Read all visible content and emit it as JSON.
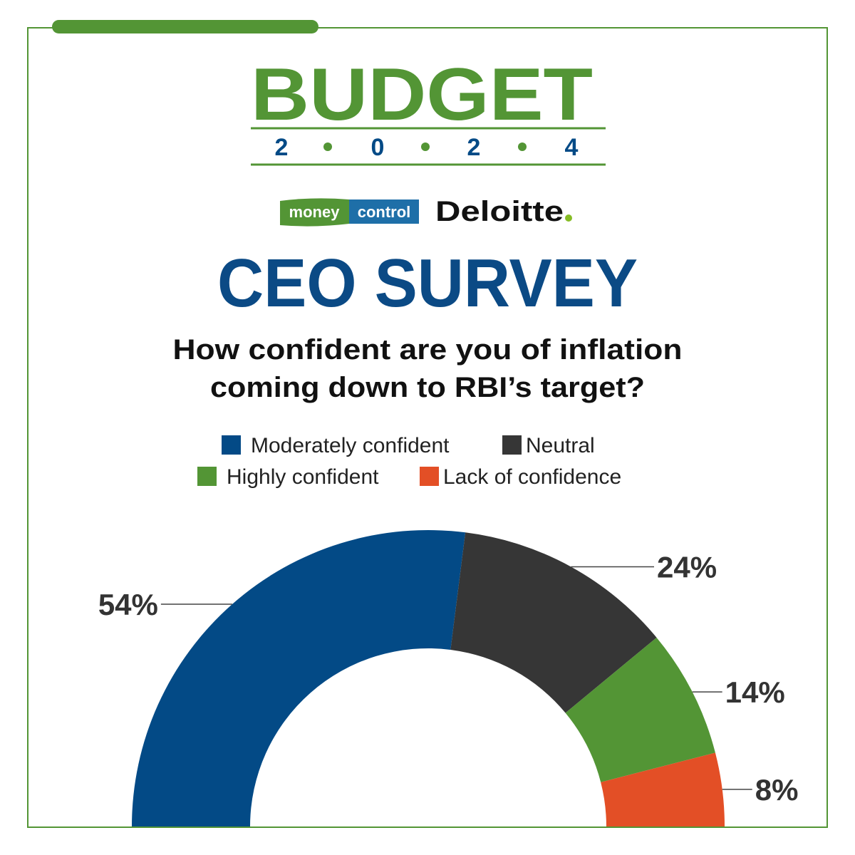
{
  "header": {
    "logo_title": "BUDGET",
    "logo_year_digits": [
      "2",
      "0",
      "2",
      "4"
    ],
    "brand_money": "money",
    "brand_control": "control",
    "brand_partner": "Deloitte",
    "title": "CEO SURVEY",
    "question_lines": [
      "How confident are you of inflation",
      "coming down to RBI’s target?"
    ]
  },
  "chart_data": {
    "type": "pie",
    "categories": [
      "Moderately confident",
      "Neutral",
      "Highly confident",
      "Lack of confidence"
    ],
    "values": [
      54,
      24,
      14,
      8
    ],
    "value_labels": [
      "54%",
      "24%",
      "14%",
      "8%"
    ],
    "colors": [
      "#034a86",
      "#363636",
      "#539535",
      "#e34f26"
    ]
  }
}
